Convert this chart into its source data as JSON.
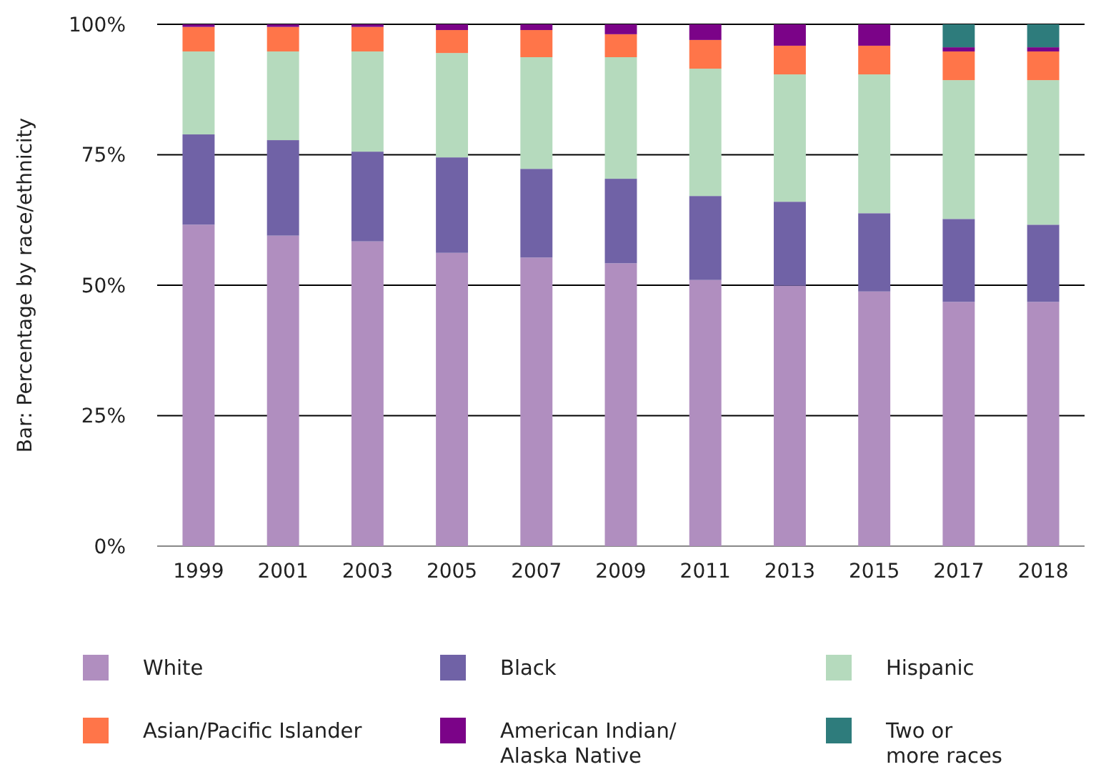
{
  "chart_data": {
    "type": "bar",
    "stacked": true,
    "ylabel": "Bar: Percentage by race/ethnicity",
    "categories": [
      "1999",
      "2001",
      "2003",
      "2005",
      "2007",
      "2009",
      "2011",
      "2013",
      "2015",
      "2017",
      "2018"
    ],
    "series": [
      {
        "name": "White",
        "color": "#b08ebf",
        "values": [
          61.6,
          59.5,
          58.4,
          56.2,
          55.3,
          54.2,
          51,
          49.9,
          48.8,
          46.8,
          46.8
        ]
      },
      {
        "name": "Black",
        "color": "#7062a6",
        "values": [
          17.3,
          18.3,
          17.2,
          18.3,
          17,
          16.2,
          16.1,
          16.1,
          15,
          15.9,
          14.8
        ]
      },
      {
        "name": "Hispanic",
        "color": "#b5dabd",
        "values": [
          15.9,
          17,
          19.2,
          20,
          21.4,
          23.3,
          24.4,
          24.4,
          26.6,
          26.6,
          27.7
        ]
      },
      {
        "name": "Asian/Pacific Islander",
        "color": "#ff7549",
        "values": [
          4.7,
          4.7,
          4.7,
          4.4,
          5.2,
          4.4,
          5.5,
          5.5,
          5.5,
          5.5,
          5.5
        ]
      },
      {
        "name": "American Indian/Alaska Native",
        "color": "#7b0388",
        "values": [
          0.5,
          0.5,
          0.5,
          1.1,
          1.1,
          1.9,
          3,
          4.1,
          4.1,
          0.8,
          0.8
        ]
      },
      {
        "name": "Two or more races",
        "color": "#2e7c7c",
        "values": [
          null,
          null,
          null,
          null,
          null,
          null,
          null,
          null,
          null,
          4.4,
          4.4
        ]
      }
    ],
    "ylim": [
      0,
      100
    ],
    "yticks": [
      {
        "value": 0,
        "label": "0%"
      },
      {
        "value": 25,
        "label": "25%"
      },
      {
        "value": 50,
        "label": "50%"
      },
      {
        "value": 75,
        "label": "75%"
      },
      {
        "value": 100,
        "label": "100%"
      }
    ],
    "grid": "y",
    "legend": "bottom"
  }
}
